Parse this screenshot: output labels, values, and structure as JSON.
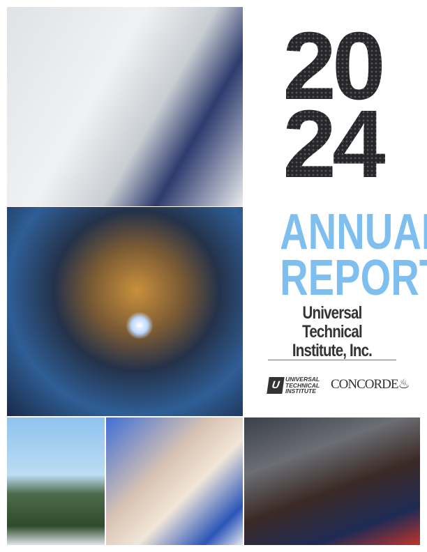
{
  "cover": {
    "year_top": "20",
    "year_bottom": "24",
    "title_line1": "ANNUAL",
    "title_line2": "REPORT",
    "company_line1": "Universal Technical",
    "company_line2": "Institute, Inc.",
    "logos": {
      "uti_mark": "U",
      "uti_line1": "UNIVERSAL",
      "uti_line2": "TECHNICAL",
      "uti_line3": "INSTITUTE",
      "concorde": "CONCORDE"
    },
    "accent_color": "#7fbff0"
  },
  "photos": [
    "instructor-with-student-at-computer",
    "welder-inside-pipe",
    "wind-turbine-technician",
    "dental-assistant-with-patient",
    "auto-technician-under-vehicle"
  ]
}
